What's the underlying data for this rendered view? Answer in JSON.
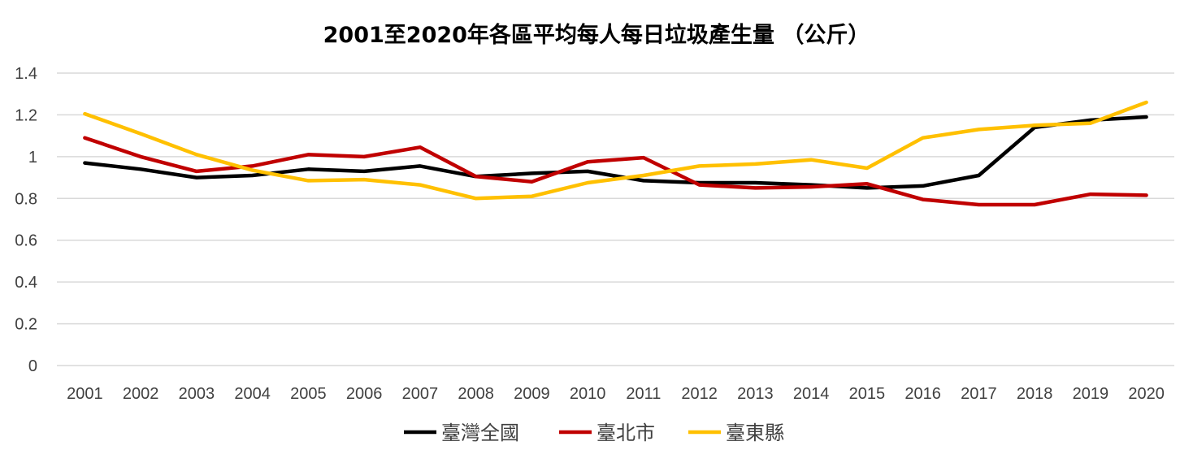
{
  "chart_data": {
    "type": "line",
    "title": "2001至2020年各區平均每人每日垃圾產生量 （公斤）",
    "xlabel": "",
    "ylabel": "",
    "ylim": [
      0,
      1.4
    ],
    "yticks": [
      "0",
      "0.2",
      "0.4",
      "0.6",
      "0.8",
      "1",
      "1.2",
      "1.4"
    ],
    "categories": [
      "2001",
      "2002",
      "2003",
      "2004",
      "2005",
      "2006",
      "2007",
      "2008",
      "2009",
      "2010",
      "2011",
      "2012",
      "2013",
      "2014",
      "2015",
      "2016",
      "2017",
      "2018",
      "2019",
      "2020"
    ],
    "grid": true,
    "legend_position": "bottom",
    "series": [
      {
        "name": "臺灣全國",
        "color": "#000000",
        "values": [
          0.97,
          0.94,
          0.9,
          0.91,
          0.94,
          0.93,
          0.955,
          0.905,
          0.92,
          0.93,
          0.885,
          0.875,
          0.875,
          0.865,
          0.85,
          0.86,
          0.91,
          1.14,
          1.175,
          1.19
        ]
      },
      {
        "name": "臺北市",
        "color": "#c00000",
        "values": [
          1.09,
          1.0,
          0.93,
          0.955,
          1.01,
          1.0,
          1.045,
          0.905,
          0.88,
          0.975,
          0.995,
          0.865,
          0.85,
          0.855,
          0.87,
          0.795,
          0.77,
          0.77,
          0.82,
          0.815
        ]
      },
      {
        "name": "臺東縣",
        "color": "#ffc000",
        "values": [
          1.205,
          1.11,
          1.01,
          0.935,
          0.885,
          0.89,
          0.865,
          0.8,
          0.81,
          0.875,
          0.91,
          0.955,
          0.965,
          0.985,
          0.945,
          1.09,
          1.13,
          1.15,
          1.16,
          1.26
        ]
      }
    ]
  }
}
